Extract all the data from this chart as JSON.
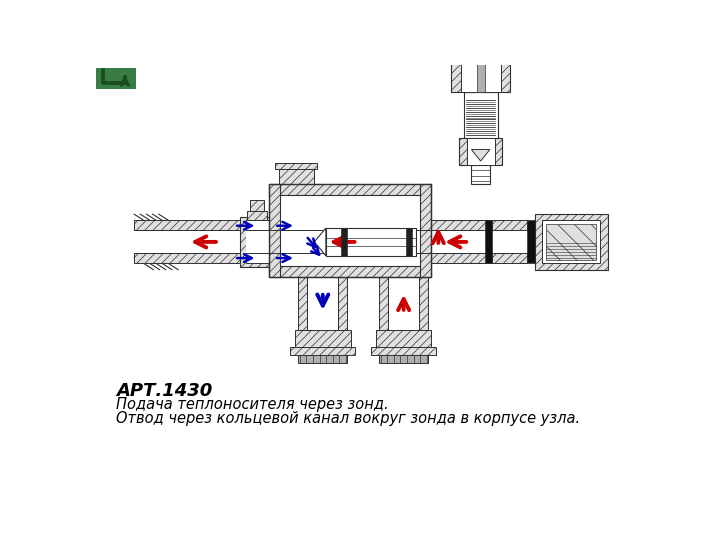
{
  "title": "АРТ.1430",
  "description_line1": "Подача теплоносителя через зонд.",
  "description_line2": "Отвод через кольцевой канал вокруг зонда в корпусе узла.",
  "bg_color": "#ffffff",
  "title_fontsize": 13,
  "desc_fontsize": 10.5,
  "logo_bg": "#3a7d44",
  "logo_text": "↰",
  "logo_text_color": "#1a4d1a",
  "red_color": "#cc0000",
  "blue_color": "#0000bb",
  "gray_light": "#e0e0e0",
  "gray_mid": "#b0b0b0",
  "gray_dark": "#707070",
  "line_color": "#303030",
  "hatch_color": "#606060"
}
